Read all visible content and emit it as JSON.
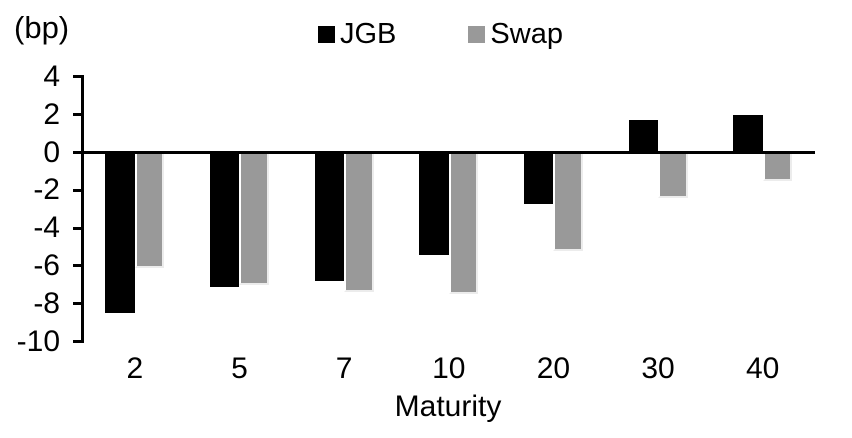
{
  "chart_data": {
    "type": "bar",
    "title": "",
    "unit_label": "(bp)",
    "xlabel": "Maturity",
    "categories": [
      "2",
      "5",
      "7",
      "10",
      "20",
      "30",
      "40"
    ],
    "series": [
      {
        "name": "JGB",
        "color": "#000000",
        "values": [
          -8.5,
          -7.1,
          -6.8,
          -5.4,
          -2.7,
          1.7,
          2.0
        ]
      },
      {
        "name": "Swap",
        "color": "#999999",
        "values": [
          -6.1,
          -7.0,
          -7.4,
          -7.5,
          -5.2,
          -2.4,
          -1.5
        ]
      }
    ],
    "y_ticks": [
      "4",
      "2",
      "0",
      "-2",
      "-4",
      "-6",
      "-8",
      "-10"
    ],
    "ylim": [
      -10,
      4
    ],
    "grid": false,
    "legend_position": "top-center",
    "axis_color": "#000000",
    "background_color": "#ffffff"
  }
}
